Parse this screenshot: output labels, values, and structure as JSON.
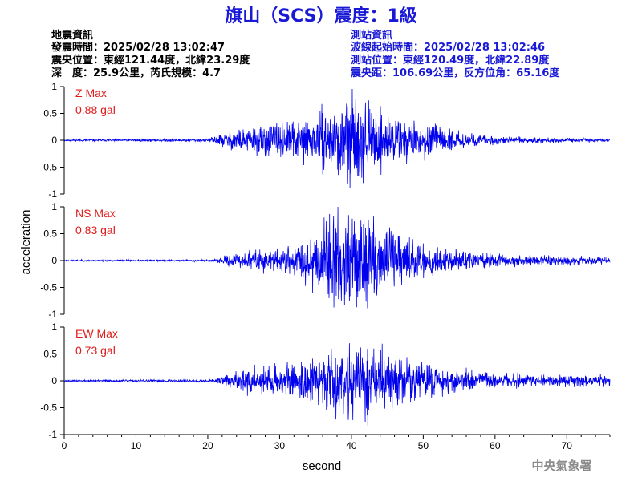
{
  "header": {
    "title": "旗山（SCS）震度：1級"
  },
  "quake_info": {
    "heading": "地震資訊",
    "time": "發震時間：2025/02/28 13:02:47",
    "epicenter": "震央位置：東經121.44度，北緯23.29度",
    "depth_magnitude": "深　度：25.9公里，芮氏規模：4.7"
  },
  "station_info": {
    "heading": "測站資訊",
    "wave_start": "波線起始時間：2025/02/28 13:02:46",
    "location": "測站位置：東經120.49度，北緯22.89度",
    "distance": "震央距：106.69公里，反方位角：65.16度"
  },
  "footer": {
    "credit": "中央氣象署"
  },
  "chart_data": {
    "type": "line",
    "xlabel": "second",
    "ylabel": "acceleration",
    "xlim": [
      0,
      76
    ],
    "ylim": [
      -1,
      1
    ],
    "x_ticks": [
      0,
      10,
      20,
      30,
      40,
      50,
      60,
      70
    ],
    "x_tick_labels": [
      "0",
      "10",
      "20",
      "30",
      "40",
      "50",
      "60",
      "70"
    ],
    "y_ticks": [
      1,
      0.5,
      0,
      -0.5,
      -1
    ],
    "y_tick_labels": [
      "1",
      "0.5",
      "0",
      "-0.5",
      "-1"
    ],
    "line_color": "#0000ee",
    "max_label_color": "#e01b1b",
    "series": [
      {
        "name": "Z Max",
        "max_text": "0.88 gal",
        "seed": 11,
        "envelope": [
          [
            0,
            0.015
          ],
          [
            20,
            0.02
          ],
          [
            22,
            0.1
          ],
          [
            24,
            0.16
          ],
          [
            27,
            0.2
          ],
          [
            30,
            0.22
          ],
          [
            34,
            0.3
          ],
          [
            38,
            0.45
          ],
          [
            40,
            0.6
          ],
          [
            42,
            0.5
          ],
          [
            45,
            0.35
          ],
          [
            48,
            0.28
          ],
          [
            52,
            0.18
          ],
          [
            55,
            0.11
          ],
          [
            60,
            0.06
          ],
          [
            65,
            0.04
          ],
          [
            70,
            0.03
          ],
          [
            76,
            0.02
          ]
        ],
        "spikes": [
          [
            28,
            -0.3
          ],
          [
            38.5,
            -0.55
          ],
          [
            39.3,
            0.68
          ],
          [
            39.8,
            -0.88
          ],
          [
            40.6,
            0.76
          ],
          [
            41.2,
            -0.6
          ],
          [
            42.3,
            0.55
          ],
          [
            44,
            -0.42
          ],
          [
            46.5,
            0.35
          ]
        ]
      },
      {
        "name": "NS Max",
        "max_text": "0.83 gal",
        "seed": 23,
        "envelope": [
          [
            0,
            0.01
          ],
          [
            21,
            0.015
          ],
          [
            23,
            0.08
          ],
          [
            26,
            0.14
          ],
          [
            30,
            0.16
          ],
          [
            33,
            0.25
          ],
          [
            36,
            0.55
          ],
          [
            38,
            0.62
          ],
          [
            40,
            0.6
          ],
          [
            42,
            0.55
          ],
          [
            45,
            0.45
          ],
          [
            48,
            0.32
          ],
          [
            50,
            0.25
          ],
          [
            53,
            0.18
          ],
          [
            57,
            0.12
          ],
          [
            62,
            0.09
          ],
          [
            68,
            0.07
          ],
          [
            76,
            0.05
          ]
        ],
        "spikes": [
          [
            36.2,
            0.8
          ],
          [
            36.9,
            -0.7
          ],
          [
            37.5,
            0.83
          ],
          [
            38.2,
            -0.72
          ],
          [
            39.2,
            0.6
          ],
          [
            40.1,
            0.78
          ],
          [
            40.9,
            -0.68
          ],
          [
            42.5,
            0.6
          ],
          [
            43.5,
            -0.65
          ],
          [
            45.5,
            0.55
          ],
          [
            47,
            -0.45
          ],
          [
            48.5,
            0.4
          ]
        ]
      },
      {
        "name": "EW Max",
        "max_text": "0.73 gal",
        "seed": 37,
        "envelope": [
          [
            0,
            0.012
          ],
          [
            21,
            0.02
          ],
          [
            23,
            0.1
          ],
          [
            25,
            0.16
          ],
          [
            28,
            0.2
          ],
          [
            32,
            0.22
          ],
          [
            35,
            0.35
          ],
          [
            38,
            0.45
          ],
          [
            40,
            0.52
          ],
          [
            42,
            0.5
          ],
          [
            45,
            0.4
          ],
          [
            48,
            0.3
          ],
          [
            52,
            0.22
          ],
          [
            56,
            0.15
          ],
          [
            60,
            0.11
          ],
          [
            65,
            0.09
          ],
          [
            70,
            0.08
          ],
          [
            76,
            0.07
          ]
        ],
        "spikes": [
          [
            25.5,
            -0.28
          ],
          [
            26.5,
            0.3
          ],
          [
            37.2,
            0.6
          ],
          [
            38.3,
            -0.62
          ],
          [
            39.7,
            0.7
          ],
          [
            40.2,
            -0.73
          ],
          [
            41.2,
            0.65
          ],
          [
            42.4,
            -0.55
          ],
          [
            43.1,
            0.6
          ],
          [
            45.2,
            0.45
          ],
          [
            50.5,
            0.3
          ]
        ]
      }
    ]
  }
}
